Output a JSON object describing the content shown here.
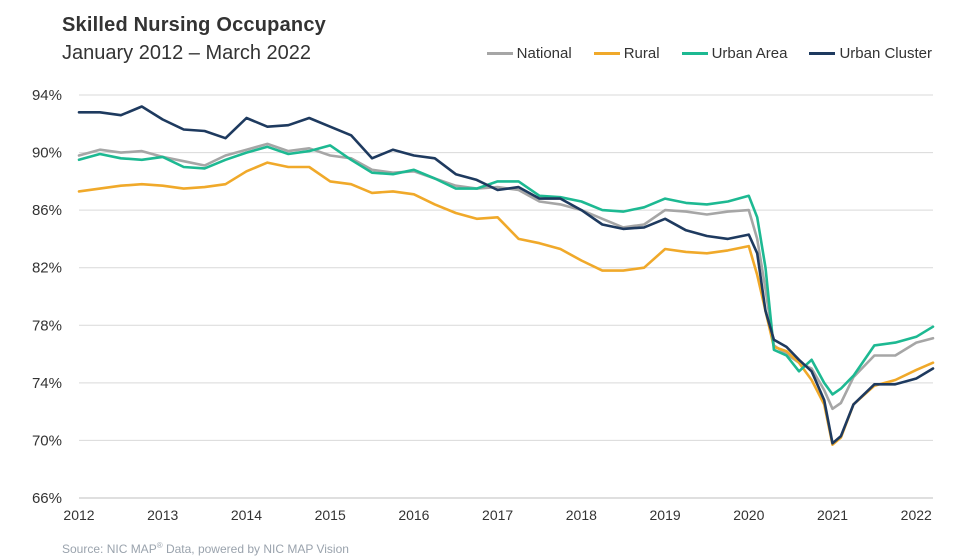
{
  "chart_data": {
    "type": "line",
    "title": "Skilled Nursing Occupancy",
    "subtitle": "January 2012 – March 2022",
    "ylim": [
      66,
      94
    ],
    "yticks": [
      66,
      70,
      74,
      78,
      82,
      86,
      90,
      94
    ],
    "ytick_labels": [
      "66%",
      "70%",
      "74%",
      "78%",
      "82%",
      "86%",
      "90%",
      "94%"
    ],
    "xlim": [
      2012.0,
      2022.2
    ],
    "xtick_labels": [
      "2012",
      "2013",
      "2014",
      "2015",
      "2016",
      "2017",
      "2018",
      "2019",
      "2020",
      "2021",
      "2022"
    ],
    "grid": true,
    "legend_position": "top-right",
    "x": [
      2012.0,
      2012.25,
      2012.5,
      2012.75,
      2013.0,
      2013.25,
      2013.5,
      2013.75,
      2014.0,
      2014.25,
      2014.5,
      2014.75,
      2015.0,
      2015.25,
      2015.5,
      2015.75,
      2016.0,
      2016.25,
      2016.5,
      2016.75,
      2017.0,
      2017.25,
      2017.5,
      2017.75,
      2018.0,
      2018.25,
      2018.5,
      2018.75,
      2019.0,
      2019.25,
      2019.5,
      2019.75,
      2020.0,
      2020.1,
      2020.2,
      2020.3,
      2020.45,
      2020.6,
      2020.75,
      2020.9,
      2021.0,
      2021.1,
      2021.25,
      2021.5,
      2021.75,
      2022.0,
      2022.2
    ],
    "series": [
      {
        "name": "National",
        "color": "#a6a6a6",
        "values": [
          89.8,
          90.2,
          90.0,
          90.1,
          89.7,
          89.4,
          89.1,
          89.8,
          90.2,
          90.6,
          90.1,
          90.3,
          89.8,
          89.6,
          88.8,
          88.6,
          88.7,
          88.2,
          87.7,
          87.5,
          87.6,
          87.4,
          86.6,
          86.4,
          86.0,
          85.4,
          84.8,
          85.0,
          86.0,
          85.9,
          85.7,
          85.9,
          86.0,
          84.0,
          80.5,
          76.6,
          76.0,
          75.4,
          75.0,
          73.5,
          72.2,
          72.6,
          74.4,
          75.9,
          75.9,
          76.8,
          77.1
        ]
      },
      {
        "name": "Rural",
        "color": "#f0a92a",
        "values": [
          87.3,
          87.5,
          87.7,
          87.8,
          87.7,
          87.5,
          87.6,
          87.8,
          88.7,
          89.3,
          89.0,
          89.0,
          88.0,
          87.8,
          87.2,
          87.3,
          87.1,
          86.4,
          85.8,
          85.4,
          85.5,
          84.0,
          83.7,
          83.3,
          82.5,
          81.8,
          81.8,
          82.0,
          83.3,
          83.1,
          83.0,
          83.2,
          83.5,
          81.5,
          79.0,
          76.5,
          76.2,
          75.4,
          74.2,
          72.5,
          69.7,
          70.2,
          72.5,
          73.8,
          74.2,
          74.9,
          75.4
        ]
      },
      {
        "name": "Urban Area",
        "color": "#1db992",
        "values": [
          89.5,
          89.9,
          89.6,
          89.5,
          89.7,
          89.0,
          88.9,
          89.5,
          90.0,
          90.4,
          89.9,
          90.1,
          90.5,
          89.5,
          88.6,
          88.5,
          88.8,
          88.2,
          87.5,
          87.5,
          88.0,
          88.0,
          87.0,
          86.9,
          86.6,
          86.0,
          85.9,
          86.2,
          86.8,
          86.5,
          86.4,
          86.6,
          87.0,
          85.5,
          82.0,
          76.3,
          75.9,
          74.8,
          75.6,
          74.0,
          73.2,
          73.6,
          74.5,
          76.6,
          76.8,
          77.2,
          77.9
        ]
      },
      {
        "name": "Urban Cluster",
        "color": "#1e3a5f",
        "values": [
          92.8,
          92.8,
          92.6,
          93.2,
          92.3,
          91.6,
          91.5,
          91.0,
          92.4,
          91.8,
          91.9,
          92.4,
          91.8,
          91.2,
          89.6,
          90.2,
          89.8,
          89.6,
          88.5,
          88.1,
          87.4,
          87.6,
          86.8,
          86.8,
          86.0,
          85.0,
          84.7,
          84.8,
          85.4,
          84.6,
          84.2,
          84.0,
          84.3,
          83.0,
          79.0,
          77.0,
          76.5,
          75.6,
          74.8,
          72.8,
          69.8,
          70.3,
          72.5,
          73.9,
          73.9,
          74.3,
          75.0
        ]
      }
    ]
  },
  "legend": [
    "National",
    "Rural",
    "Urban Area",
    "Urban Cluster"
  ],
  "source": {
    "text": "Source: NIC MAP",
    "mark": "®",
    "rest": " Data, powered  by NIC MAP Vision"
  }
}
